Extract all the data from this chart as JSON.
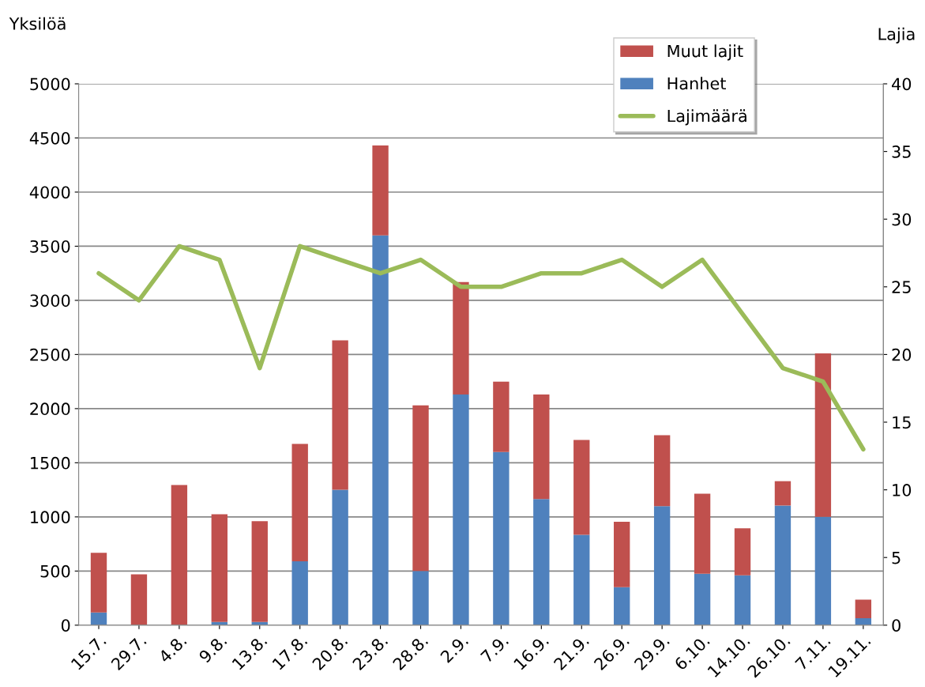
{
  "chart_data": {
    "type": "bar",
    "stacked": true,
    "ylabel": "Yksilöä",
    "y2label": "Lajia",
    "categories": [
      "15.7.",
      "29.7.",
      "4.8.",
      "9.8.",
      "13.8.",
      "17.8.",
      "20.8.",
      "23.8.",
      "28.8.",
      "2.9.",
      "7.9.",
      "16.9.",
      "21.9.",
      "26.9.",
      "29.9.",
      "6.10.",
      "14.10.",
      "26.10.",
      "7.11.",
      "19.11."
    ],
    "series": [
      {
        "name": "Hanhet",
        "color": "#4f81bd",
        "values": [
          118,
          0,
          0,
          30,
          30,
          590,
          1250,
          3600,
          500,
          2130,
          1600,
          1165,
          835,
          350,
          1100,
          475,
          460,
          1105,
          1000,
          65
        ]
      },
      {
        "name": "Muut lajit",
        "color": "#c0504d",
        "values": [
          550,
          470,
          1295,
          995,
          930,
          1085,
          1380,
          830,
          1530,
          1040,
          650,
          965,
          875,
          605,
          655,
          740,
          435,
          225,
          1510,
          170
        ]
      },
      {
        "name": "Lajimäärä",
        "type": "line",
        "axis": "y2",
        "color": "#9bbb59",
        "values": [
          26,
          24,
          28,
          27,
          19,
          28,
          27,
          26,
          27,
          25,
          25,
          26,
          26,
          27,
          25,
          27,
          23,
          19,
          18,
          13
        ]
      }
    ],
    "ylim": [
      0,
      5000
    ],
    "yticks": [
      0,
      500,
      1000,
      1500,
      2000,
      2500,
      3000,
      3500,
      4000,
      4500,
      5000
    ],
    "y2lim": [
      0,
      40
    ],
    "y2ticks": [
      0,
      5,
      10,
      15,
      20,
      25,
      30,
      35,
      40
    ],
    "grid": "y",
    "legend": "top right"
  }
}
